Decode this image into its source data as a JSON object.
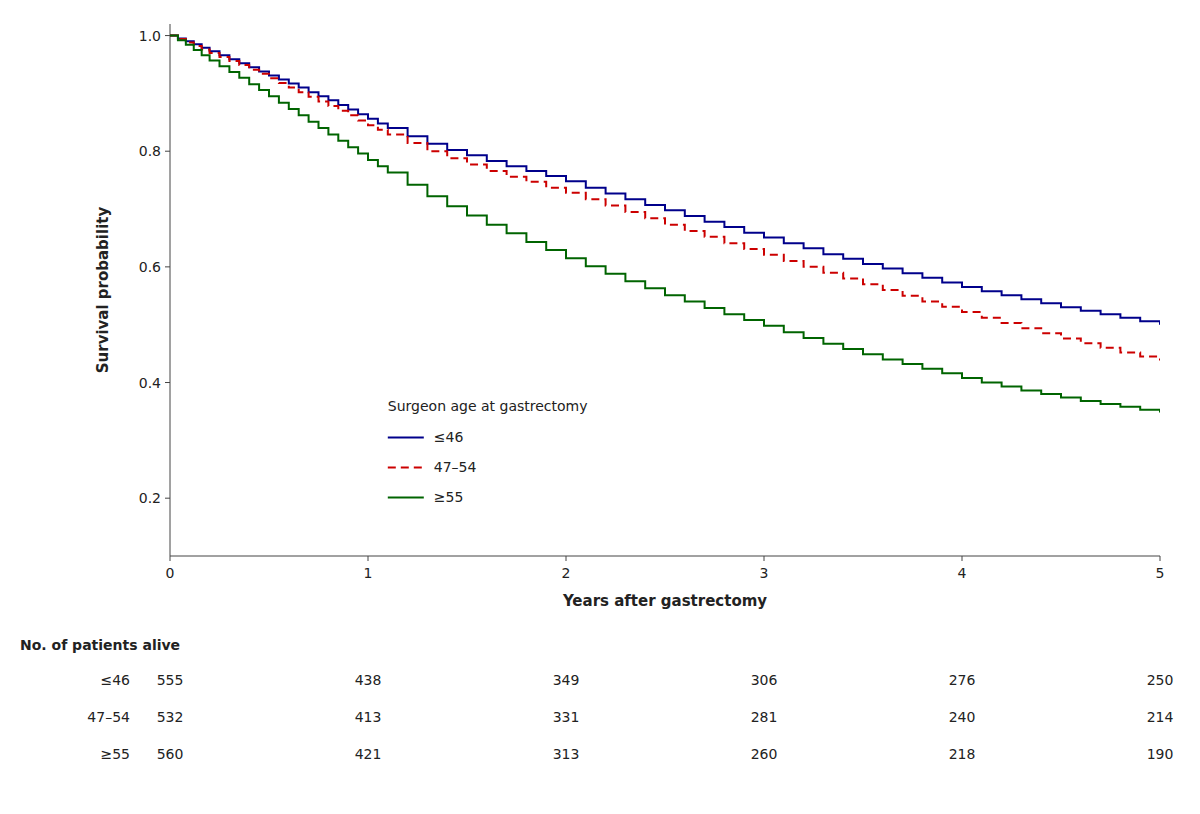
{
  "chart_data": {
    "type": "step",
    "xlabel": "Years after gastrectomy",
    "ylabel": "Survival probability",
    "xlim": [
      0,
      5
    ],
    "ylim": [
      0.1,
      1.02
    ],
    "xticks": [
      0,
      1,
      2,
      3,
      4,
      5
    ],
    "yticks": [
      0.2,
      0.4,
      0.6,
      0.8,
      {
        "value": 1.0,
        "label": "1.0"
      }
    ],
    "grid": false,
    "legend": "lower left",
    "legend_title": "Surgeon age at gastrectomy",
    "series": [
      {
        "name": "≤46",
        "color": "#00008B",
        "line_style": "solid",
        "x": [
          0.0,
          0.04,
          0.08,
          0.12,
          0.16,
          0.2,
          0.25,
          0.3,
          0.35,
          0.4,
          0.45,
          0.5,
          0.55,
          0.6,
          0.65,
          0.7,
          0.75,
          0.8,
          0.85,
          0.9,
          0.95,
          1.0,
          1.05,
          1.1,
          1.2,
          1.3,
          1.4,
          1.5,
          1.6,
          1.7,
          1.8,
          1.9,
          2.0,
          2.1,
          2.2,
          2.3,
          2.4,
          2.5,
          2.6,
          2.7,
          2.8,
          2.9,
          3.0,
          3.1,
          3.2,
          3.3,
          3.4,
          3.5,
          3.6,
          3.7,
          3.8,
          3.9,
          4.0,
          4.1,
          4.2,
          4.3,
          4.4,
          4.5,
          4.6,
          4.7,
          4.8,
          4.9,
          5.0
        ],
        "values": [
          1.0,
          0.995,
          0.99,
          0.985,
          0.979,
          0.973,
          0.966,
          0.959,
          0.952,
          0.945,
          0.938,
          0.931,
          0.924,
          0.917,
          0.91,
          0.902,
          0.895,
          0.888,
          0.88,
          0.872,
          0.864,
          0.856,
          0.848,
          0.84,
          0.826,
          0.813,
          0.802,
          0.793,
          0.783,
          0.774,
          0.766,
          0.757,
          0.748,
          0.737,
          0.727,
          0.717,
          0.707,
          0.698,
          0.688,
          0.678,
          0.669,
          0.659,
          0.651,
          0.641,
          0.632,
          0.622,
          0.614,
          0.605,
          0.597,
          0.589,
          0.581,
          0.573,
          0.565,
          0.558,
          0.551,
          0.544,
          0.537,
          0.53,
          0.524,
          0.518,
          0.512,
          0.506,
          0.5
        ]
      },
      {
        "name": "47–54",
        "color": "#CC0000",
        "line_style": "dashed",
        "x": [
          0.0,
          0.04,
          0.08,
          0.12,
          0.16,
          0.2,
          0.25,
          0.3,
          0.35,
          0.4,
          0.45,
          0.5,
          0.55,
          0.6,
          0.65,
          0.7,
          0.75,
          0.8,
          0.85,
          0.9,
          0.95,
          1.0,
          1.05,
          1.1,
          1.2,
          1.3,
          1.4,
          1.5,
          1.6,
          1.7,
          1.8,
          1.9,
          2.0,
          2.1,
          2.2,
          2.3,
          2.4,
          2.5,
          2.6,
          2.7,
          2.8,
          2.9,
          3.0,
          3.1,
          3.2,
          3.3,
          3.4,
          3.5,
          3.6,
          3.7,
          3.8,
          3.9,
          4.0,
          4.1,
          4.2,
          4.3,
          4.4,
          4.5,
          4.6,
          4.7,
          4.8,
          4.9,
          5.0
        ],
        "values": [
          1.0,
          0.994,
          0.988,
          0.982,
          0.976,
          0.97,
          0.963,
          0.956,
          0.949,
          0.941,
          0.934,
          0.926,
          0.918,
          0.91,
          0.902,
          0.894,
          0.886,
          0.878,
          0.87,
          0.862,
          0.853,
          0.845,
          0.837,
          0.829,
          0.814,
          0.8,
          0.788,
          0.777,
          0.766,
          0.756,
          0.747,
          0.737,
          0.728,
          0.717,
          0.706,
          0.695,
          0.684,
          0.673,
          0.662,
          0.652,
          0.641,
          0.631,
          0.621,
          0.61,
          0.6,
          0.59,
          0.58,
          0.57,
          0.56,
          0.55,
          0.54,
          0.531,
          0.522,
          0.512,
          0.503,
          0.494,
          0.485,
          0.476,
          0.468,
          0.46,
          0.452,
          0.445,
          0.438
        ]
      },
      {
        "name": "≥55",
        "color": "#006400",
        "line_style": "solid",
        "x": [
          0.0,
          0.04,
          0.08,
          0.12,
          0.16,
          0.2,
          0.25,
          0.3,
          0.35,
          0.4,
          0.45,
          0.5,
          0.55,
          0.6,
          0.65,
          0.7,
          0.75,
          0.8,
          0.85,
          0.9,
          0.95,
          1.0,
          1.05,
          1.1,
          1.2,
          1.3,
          1.4,
          1.5,
          1.6,
          1.7,
          1.8,
          1.9,
          2.0,
          2.1,
          2.2,
          2.3,
          2.4,
          2.5,
          2.6,
          2.7,
          2.8,
          2.9,
          3.0,
          3.1,
          3.2,
          3.3,
          3.4,
          3.5,
          3.6,
          3.7,
          3.8,
          3.9,
          4.0,
          4.1,
          4.2,
          4.3,
          4.4,
          4.5,
          4.6,
          4.7,
          4.8,
          4.9,
          5.0
        ],
        "values": [
          1.0,
          0.992,
          0.984,
          0.975,
          0.966,
          0.957,
          0.947,
          0.937,
          0.927,
          0.916,
          0.906,
          0.895,
          0.884,
          0.873,
          0.862,
          0.851,
          0.84,
          0.829,
          0.818,
          0.807,
          0.796,
          0.785,
          0.774,
          0.763,
          0.742,
          0.722,
          0.705,
          0.689,
          0.673,
          0.658,
          0.643,
          0.629,
          0.615,
          0.601,
          0.588,
          0.575,
          0.563,
          0.551,
          0.54,
          0.529,
          0.518,
          0.508,
          0.498,
          0.487,
          0.477,
          0.467,
          0.458,
          0.449,
          0.44,
          0.432,
          0.424,
          0.416,
          0.408,
          0.4,
          0.393,
          0.386,
          0.38,
          0.374,
          0.368,
          0.363,
          0.358,
          0.353,
          0.348
        ]
      }
    ],
    "risk_table": {
      "header": "No. of patients alive",
      "times": [
        0,
        1,
        2,
        3,
        4,
        5
      ],
      "rows": [
        {
          "name": "≤46",
          "values": [
            555,
            438,
            349,
            306,
            276,
            250
          ]
        },
        {
          "name": "47–54",
          "values": [
            532,
            413,
            331,
            281,
            240,
            214
          ]
        },
        {
          "name": "≥55",
          "values": [
            560,
            421,
            313,
            260,
            218,
            190
          ]
        }
      ]
    }
  }
}
